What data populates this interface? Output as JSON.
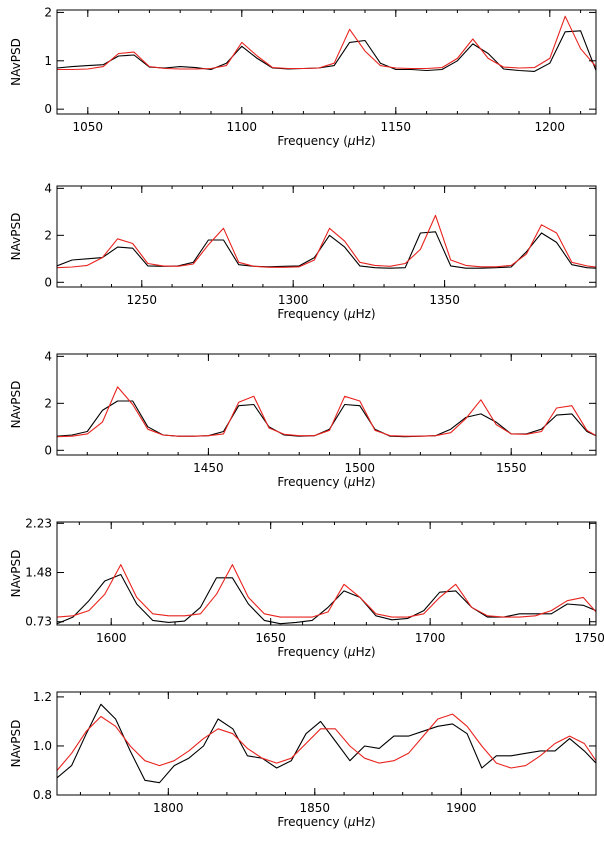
{
  "colors": {
    "observed": "#000000",
    "model": "#e8231e",
    "axis": "#000000",
    "background": "#ffffff"
  },
  "chart_data": [
    {
      "type": "line",
      "xlabel_pre": "Frequency (",
      "xlabel_mu": "μ",
      "xlabel_post": "Hz)",
      "ylabel": "NAvPSD",
      "xlim": [
        1040,
        1215
      ],
      "ylim": [
        -0.1,
        2.05
      ],
      "xticks": [
        {
          "v": 1050,
          "label": "1050"
        },
        {
          "v": 1100,
          "label": "1100"
        },
        {
          "v": 1150,
          "label": "1150"
        },
        {
          "v": 1200,
          "label": "1200"
        }
      ],
      "yticks": [
        {
          "v": 0,
          "label": "0"
        },
        {
          "v": 1,
          "label": "1"
        },
        {
          "v": 2,
          "label": "2"
        }
      ],
      "x_minor_step": 10,
      "series": [
        {
          "color": "#000000",
          "x": [
            1040,
            1045,
            1050,
            1055,
            1060,
            1065,
            1070,
            1075,
            1080,
            1085,
            1090,
            1095,
            1100,
            1105,
            1110,
            1115,
            1120,
            1125,
            1130,
            1135,
            1140,
            1145,
            1150,
            1155,
            1160,
            1165,
            1170,
            1175,
            1180,
            1185,
            1190,
            1195,
            1200,
            1205,
            1210,
            1215
          ],
          "y": [
            0.85,
            0.88,
            0.9,
            0.92,
            1.1,
            1.12,
            0.87,
            0.85,
            0.88,
            0.86,
            0.82,
            0.95,
            1.3,
            1.05,
            0.85,
            0.83,
            0.84,
            0.85,
            0.9,
            1.38,
            1.42,
            0.95,
            0.82,
            0.82,
            0.8,
            0.82,
            1.0,
            1.35,
            1.15,
            0.83,
            0.8,
            0.78,
            0.95,
            1.6,
            1.62,
            0.8
          ]
        },
        {
          "color": "#e8231e",
          "x": [
            1040,
            1045,
            1050,
            1055,
            1060,
            1065,
            1070,
            1075,
            1080,
            1085,
            1090,
            1095,
            1100,
            1105,
            1110,
            1115,
            1120,
            1125,
            1130,
            1135,
            1140,
            1145,
            1150,
            1155,
            1160,
            1165,
            1170,
            1175,
            1180,
            1185,
            1190,
            1195,
            1200,
            1205,
            1210,
            1215
          ],
          "y": [
            0.82,
            0.82,
            0.83,
            0.88,
            1.15,
            1.18,
            0.88,
            0.84,
            0.83,
            0.83,
            0.84,
            0.9,
            1.38,
            1.1,
            0.86,
            0.84,
            0.84,
            0.85,
            0.95,
            1.65,
            1.2,
            0.9,
            0.85,
            0.84,
            0.84,
            0.86,
            1.05,
            1.45,
            1.05,
            0.87,
            0.85,
            0.86,
            1.05,
            1.92,
            1.25,
            0.88
          ]
        }
      ]
    },
    {
      "type": "line",
      "xlabel_pre": "Frequency (",
      "xlabel_mu": "μ",
      "xlabel_post": "Hz)",
      "ylabel": "NAvPSD",
      "xlim": [
        1222,
        1400
      ],
      "ylim": [
        -0.2,
        4.1
      ],
      "xticks": [
        {
          "v": 1250,
          "label": "1250"
        },
        {
          "v": 1300,
          "label": "1300"
        },
        {
          "v": 1350,
          "label": "1350"
        }
      ],
      "yticks": [
        {
          "v": 0,
          "label": "0"
        },
        {
          "v": 2,
          "label": "2"
        },
        {
          "v": 4,
          "label": "4"
        }
      ],
      "x_minor_step": 10,
      "series": [
        {
          "color": "#000000",
          "x": [
            1222,
            1227,
            1232,
            1237,
            1242,
            1247,
            1252,
            1257,
            1262,
            1267,
            1272,
            1277,
            1282,
            1287,
            1292,
            1297,
            1302,
            1307,
            1312,
            1317,
            1322,
            1327,
            1332,
            1337,
            1342,
            1347,
            1352,
            1357,
            1362,
            1367,
            1372,
            1377,
            1382,
            1387,
            1392,
            1397,
            1400
          ],
          "y": [
            0.7,
            0.95,
            1.0,
            1.05,
            1.5,
            1.45,
            0.7,
            0.68,
            0.7,
            0.85,
            1.8,
            1.8,
            0.75,
            0.68,
            0.66,
            0.68,
            0.7,
            1.05,
            2.0,
            1.5,
            0.7,
            0.62,
            0.6,
            0.62,
            2.1,
            2.15,
            0.7,
            0.6,
            0.6,
            0.62,
            0.65,
            1.3,
            2.1,
            1.7,
            0.75,
            0.62,
            0.6
          ]
        },
        {
          "color": "#e8231e",
          "x": [
            1222,
            1227,
            1232,
            1237,
            1242,
            1247,
            1252,
            1257,
            1262,
            1267,
            1272,
            1277,
            1282,
            1287,
            1292,
            1297,
            1302,
            1307,
            1312,
            1317,
            1322,
            1327,
            1332,
            1337,
            1342,
            1347,
            1352,
            1357,
            1362,
            1367,
            1372,
            1377,
            1382,
            1387,
            1392,
            1397,
            1400
          ],
          "y": [
            0.62,
            0.65,
            0.72,
            1.05,
            1.85,
            1.65,
            0.8,
            0.7,
            0.68,
            0.78,
            1.6,
            2.3,
            0.85,
            0.68,
            0.64,
            0.64,
            0.66,
            0.95,
            2.3,
            1.75,
            0.85,
            0.72,
            0.68,
            0.8,
            1.4,
            2.85,
            0.95,
            0.72,
            0.66,
            0.66,
            0.72,
            1.2,
            2.45,
            2.1,
            0.85,
            0.7,
            0.65
          ]
        }
      ]
    },
    {
      "type": "line",
      "xlabel_pre": "Frequency (",
      "xlabel_mu": "μ",
      "xlabel_post": "Hz)",
      "ylabel": "NAvPSD",
      "xlim": [
        1400,
        1578
      ],
      "ylim": [
        -0.2,
        4.1
      ],
      "xticks": [
        {
          "v": 1450,
          "label": "1450"
        },
        {
          "v": 1500,
          "label": "1500"
        },
        {
          "v": 1550,
          "label": "1550"
        }
      ],
      "yticks": [
        {
          "v": 0,
          "label": "0"
        },
        {
          "v": 2,
          "label": "2"
        },
        {
          "v": 4,
          "label": "4"
        }
      ],
      "x_minor_step": 10,
      "series": [
        {
          "color": "#000000",
          "x": [
            1400,
            1405,
            1410,
            1415,
            1420,
            1425,
            1430,
            1435,
            1440,
            1445,
            1450,
            1455,
            1460,
            1465,
            1470,
            1475,
            1480,
            1485,
            1490,
            1495,
            1500,
            1505,
            1510,
            1515,
            1520,
            1525,
            1530,
            1535,
            1540,
            1545,
            1550,
            1555,
            1560,
            1565,
            1570,
            1575,
            1578
          ],
          "y": [
            0.6,
            0.65,
            0.8,
            1.7,
            2.1,
            2.1,
            1.0,
            0.65,
            0.6,
            0.6,
            0.62,
            0.8,
            1.9,
            1.95,
            1.0,
            0.65,
            0.6,
            0.62,
            0.9,
            1.95,
            1.9,
            0.9,
            0.6,
            0.58,
            0.6,
            0.62,
            0.9,
            1.4,
            1.55,
            1.2,
            0.7,
            0.7,
            0.9,
            1.5,
            1.55,
            0.8,
            0.62
          ]
        },
        {
          "color": "#e8231e",
          "x": [
            1400,
            1405,
            1410,
            1415,
            1420,
            1425,
            1430,
            1435,
            1440,
            1445,
            1450,
            1455,
            1460,
            1465,
            1470,
            1475,
            1480,
            1485,
            1490,
            1495,
            1500,
            1505,
            1510,
            1515,
            1520,
            1525,
            1530,
            1535,
            1540,
            1545,
            1550,
            1555,
            1560,
            1565,
            1570,
            1575,
            1578
          ],
          "y": [
            0.58,
            0.6,
            0.7,
            1.2,
            2.7,
            1.95,
            0.9,
            0.65,
            0.6,
            0.6,
            0.62,
            0.7,
            2.05,
            2.3,
            0.95,
            0.68,
            0.62,
            0.62,
            0.85,
            2.3,
            2.1,
            0.85,
            0.62,
            0.6,
            0.6,
            0.62,
            0.75,
            1.35,
            2.15,
            1.1,
            0.7,
            0.68,
            0.8,
            1.8,
            1.9,
            0.85,
            0.62
          ]
        }
      ]
    },
    {
      "type": "line",
      "xlabel_pre": "Frequency (",
      "xlabel_mu": "μ",
      "xlabel_post": "Hz)",
      "ylabel": "NAvPSD",
      "xlim": [
        1583,
        1752
      ],
      "ylim": [
        0.68,
        2.25
      ],
      "xticks": [
        {
          "v": 1600,
          "label": "1600"
        },
        {
          "v": 1650,
          "label": "1650"
        },
        {
          "v": 1700,
          "label": "1700"
        },
        {
          "v": 1750,
          "label": "1750"
        }
      ],
      "yticks": [
        {
          "v": 0.73,
          "label": "0.73"
        },
        {
          "v": 1.48,
          "label": "1.48"
        },
        {
          "v": 2.23,
          "label": "2.23"
        }
      ],
      "x_minor_step": 10,
      "series": [
        {
          "color": "#000000",
          "x": [
            1583,
            1588,
            1593,
            1598,
            1603,
            1608,
            1613,
            1618,
            1623,
            1628,
            1633,
            1638,
            1643,
            1648,
            1653,
            1658,
            1663,
            1668,
            1673,
            1678,
            1683,
            1688,
            1693,
            1698,
            1703,
            1708,
            1713,
            1718,
            1723,
            1728,
            1733,
            1738,
            1743,
            1748,
            1752
          ],
          "y": [
            0.7,
            0.8,
            1.05,
            1.35,
            1.45,
            1.0,
            0.75,
            0.72,
            0.74,
            0.95,
            1.4,
            1.4,
            1.0,
            0.75,
            0.7,
            0.72,
            0.75,
            0.95,
            1.2,
            1.1,
            0.82,
            0.76,
            0.78,
            0.9,
            1.18,
            1.2,
            0.95,
            0.8,
            0.8,
            0.85,
            0.85,
            0.85,
            1.0,
            0.98,
            0.9
          ]
        },
        {
          "color": "#e8231e",
          "x": [
            1583,
            1588,
            1593,
            1598,
            1603,
            1608,
            1613,
            1618,
            1623,
            1628,
            1633,
            1638,
            1643,
            1648,
            1653,
            1658,
            1663,
            1668,
            1673,
            1678,
            1683,
            1688,
            1693,
            1698,
            1703,
            1708,
            1713,
            1718,
            1723,
            1728,
            1733,
            1738,
            1743,
            1748,
            1752
          ],
          "y": [
            0.8,
            0.82,
            0.9,
            1.15,
            1.6,
            1.1,
            0.85,
            0.82,
            0.82,
            0.85,
            1.15,
            1.6,
            1.1,
            0.85,
            0.8,
            0.8,
            0.8,
            0.88,
            1.3,
            1.1,
            0.85,
            0.8,
            0.8,
            0.85,
            1.1,
            1.3,
            0.95,
            0.82,
            0.8,
            0.8,
            0.82,
            0.9,
            1.05,
            1.1,
            0.88
          ]
        }
      ]
    },
    {
      "type": "line",
      "xlabel_pre": "Frequency (",
      "xlabel_mu": "μ",
      "xlabel_post": "Hz)",
      "ylabel": "NAvPSD",
      "xlim": [
        1762,
        1946
      ],
      "ylim": [
        0.8,
        1.22
      ],
      "xticks": [
        {
          "v": 1800,
          "label": "1800"
        },
        {
          "v": 1850,
          "label": "1850"
        },
        {
          "v": 1900,
          "label": "1900"
        }
      ],
      "yticks": [
        {
          "v": 0.8,
          "label": "0.8"
        },
        {
          "v": 1.0,
          "label": "1.0"
        },
        {
          "v": 1.2,
          "label": "1.2"
        }
      ],
      "x_minor_step": 10,
      "series": [
        {
          "color": "#000000",
          "x": [
            1762,
            1767,
            1772,
            1777,
            1782,
            1787,
            1792,
            1797,
            1802,
            1807,
            1812,
            1817,
            1822,
            1827,
            1832,
            1837,
            1842,
            1847,
            1852,
            1857,
            1862,
            1867,
            1872,
            1877,
            1882,
            1887,
            1892,
            1897,
            1902,
            1907,
            1912,
            1917,
            1922,
            1927,
            1932,
            1937,
            1942,
            1946
          ],
          "y": [
            0.87,
            0.92,
            1.05,
            1.17,
            1.11,
            0.98,
            0.86,
            0.85,
            0.92,
            0.95,
            1.0,
            1.11,
            1.07,
            0.96,
            0.95,
            0.91,
            0.94,
            1.05,
            1.1,
            1.02,
            0.94,
            1.0,
            0.99,
            1.04,
            1.04,
            1.06,
            1.08,
            1.09,
            1.05,
            0.91,
            0.96,
            0.96,
            0.97,
            0.98,
            0.98,
            1.03,
            0.98,
            0.93
          ]
        },
        {
          "color": "#e8231e",
          "x": [
            1762,
            1767,
            1772,
            1777,
            1782,
            1787,
            1792,
            1797,
            1802,
            1807,
            1812,
            1817,
            1822,
            1827,
            1832,
            1837,
            1842,
            1847,
            1852,
            1857,
            1862,
            1867,
            1872,
            1877,
            1882,
            1887,
            1892,
            1897,
            1902,
            1907,
            1912,
            1917,
            1922,
            1927,
            1932,
            1937,
            1942,
            1946
          ],
          "y": [
            0.9,
            0.97,
            1.06,
            1.12,
            1.08,
            1.0,
            0.94,
            0.92,
            0.94,
            0.98,
            1.03,
            1.07,
            1.05,
            0.99,
            0.95,
            0.93,
            0.95,
            1.01,
            1.07,
            1.07,
            1.0,
            0.95,
            0.93,
            0.94,
            0.97,
            1.04,
            1.11,
            1.13,
            1.08,
            1.0,
            0.93,
            0.91,
            0.92,
            0.96,
            1.01,
            1.04,
            1.01,
            0.94
          ]
        }
      ]
    }
  ]
}
